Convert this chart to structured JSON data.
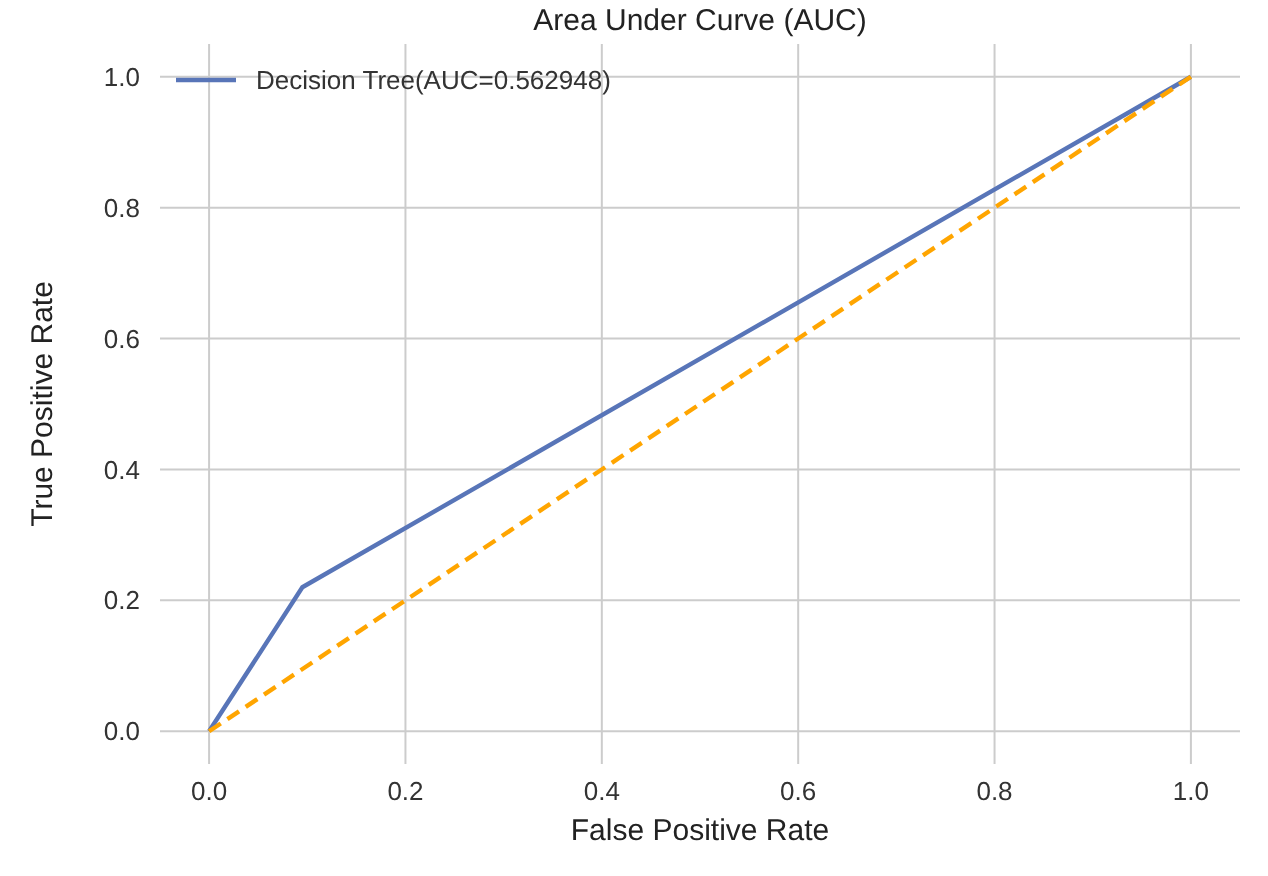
{
  "chart_data": {
    "type": "line",
    "title": "Area Under Curve (AUC)",
    "xlabel": "False Positive Rate",
    "ylabel": "True Positive Rate",
    "xlim": [
      -0.05,
      1.05
    ],
    "ylim": [
      -0.05,
      1.05
    ],
    "xticks": [
      {
        "value": 0,
        "label": "0.0"
      },
      {
        "value": 0.2,
        "label": "0.2"
      },
      {
        "value": 0.4,
        "label": "0.4"
      },
      {
        "value": 0.6,
        "label": "0.6"
      },
      {
        "value": 0.8,
        "label": "0.8"
      },
      {
        "value": 1,
        "label": "1.0"
      }
    ],
    "yticks": [
      {
        "value": 0,
        "label": "0.0"
      },
      {
        "value": 0.2,
        "label": "0.2"
      },
      {
        "value": 0.4,
        "label": "0.4"
      },
      {
        "value": 0.6,
        "label": "0.6"
      },
      {
        "value": 0.8,
        "label": "0.8"
      },
      {
        "value": 1,
        "label": "1.0"
      }
    ],
    "grid": true,
    "legend": "top left",
    "marker": "none",
    "series": [
      {
        "name": "Decision Tree(AUC=0.562948)",
        "color": "#5875b8",
        "x": [
          0,
          0.095,
          1
        ],
        "values": [
          0,
          0.22,
          1
        ],
        "line_style": "solid"
      },
      {
        "color": "#ffa500",
        "x": [
          0,
          1
        ],
        "values": [
          0,
          1
        ],
        "line_style": "dashed"
      }
    ]
  }
}
